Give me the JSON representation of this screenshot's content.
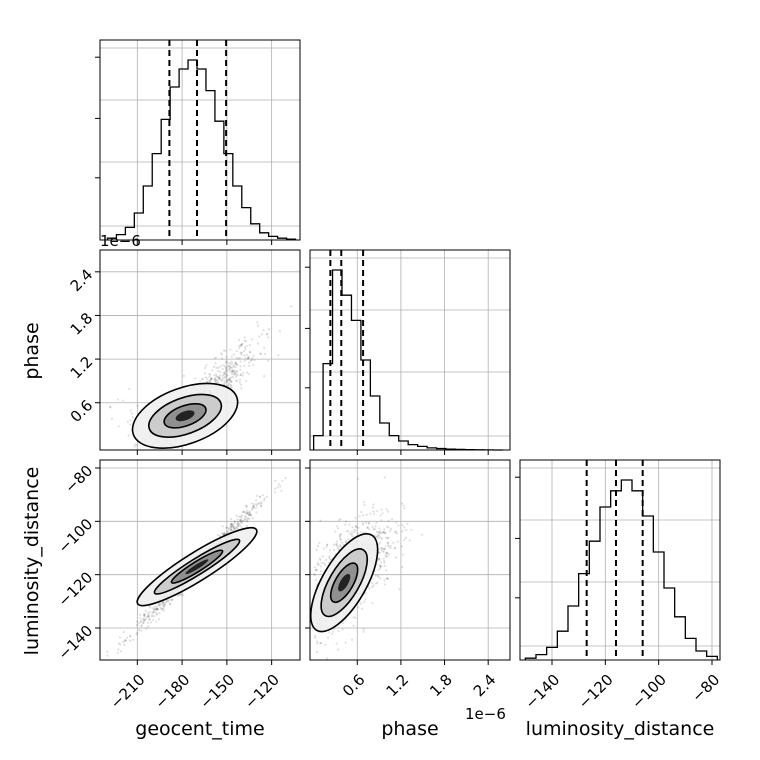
{
  "chart_data": {
    "type": "corner",
    "parameters": [
      "geocent_time",
      "phase",
      "luminosity_distance"
    ],
    "offset_labels": {
      "geocent_time_y": "1e−6",
      "phase_x": "1e−6"
    },
    "grid": true,
    "ticks": {
      "geocent_time": {
        "values": [
          -210,
          -180,
          -150,
          -120
        ],
        "labels": [
          "−210",
          "−180",
          "−150",
          "−120"
        ]
      },
      "phase": {
        "values": [
          0.6,
          1.2,
          1.8,
          2.4
        ],
        "labels": [
          "0.6",
          "1.2",
          "1.8",
          "2.4"
        ]
      },
      "luminosity_distance": {
        "values": [
          -140,
          -120,
          -100,
          -80
        ],
        "labels": [
          "−140",
          "−120",
          "−100",
          "−80"
        ]
      }
    },
    "ranges": {
      "geocent_time": [
        -235,
        -101
      ],
      "phase": [
        -0.05,
        2.7
      ],
      "luminosity_distance": [
        -152,
        -77
      ]
    },
    "histograms": {
      "geocent_time": {
        "bins": [
          -230,
          -224,
          -218,
          -212,
          -206,
          -200,
          -194,
          -188,
          -182,
          -176,
          -170,
          -164,
          -158,
          -152,
          -146,
          -140,
          -134,
          -128,
          -122,
          -116,
          -110,
          -104
        ],
        "counts": [
          1,
          3,
          7,
          15,
          30,
          48,
          67,
          85,
          95,
          100,
          95,
          83,
          66,
          48,
          30,
          18,
          9,
          4,
          2,
          1,
          0.5
        ],
        "quantiles": [
          -188.5,
          -170,
          -150.5
        ]
      },
      "phase": {
        "bins": [
          0.0,
          0.13,
          0.26,
          0.39,
          0.52,
          0.65,
          0.78,
          0.91,
          1.04,
          1.17,
          1.3,
          1.43,
          1.56,
          1.69,
          1.82,
          1.95,
          2.08,
          2.21,
          2.34,
          2.47,
          2.6
        ],
        "counts": [
          8,
          48,
          100,
          86,
          72,
          50,
          30,
          15,
          8,
          5,
          3,
          2,
          1.2,
          0.8,
          0.5,
          0.3,
          0.2,
          0.1,
          0.05,
          0.02
        ],
        "quantiles": [
          0.23,
          0.38,
          0.68
        ]
      },
      "luminosity_distance": {
        "bins": [
          -150,
          -146,
          -142,
          -138,
          -134,
          -130,
          -126,
          -122,
          -118,
          -114,
          -110,
          -106,
          -102,
          -98,
          -94,
          -90,
          -86,
          -82,
          -78
        ],
        "counts": [
          1,
          3,
          7,
          16,
          30,
          48,
          66,
          85,
          94,
          100,
          94,
          80,
          60,
          40,
          24,
          12,
          5,
          2
        ],
        "quantiles": [
          -127,
          -116,
          -106
        ]
      }
    },
    "pairs": [
      {
        "x": "geocent_time",
        "y": "phase",
        "correlation": 0.55,
        "cloud": {
          "x_mean": -170,
          "x_sd": 20,
          "y_center": 0.55,
          "y_sd": 0.3
        }
      },
      {
        "x": "geocent_time",
        "y": "luminosity_distance",
        "correlation": 0.99,
        "cloud": {
          "x_mean": -170,
          "x_sd": 20,
          "slope": 0.57,
          "intercept": -20,
          "noise_sd": 1.8
        }
      },
      {
        "x": "phase",
        "y": "luminosity_distance",
        "correlation": 0.55,
        "cloud": {
          "x_mean": 0.5,
          "x_sd": 0.3,
          "y_mean": -118,
          "y_sd": 11
        }
      }
    ]
  }
}
